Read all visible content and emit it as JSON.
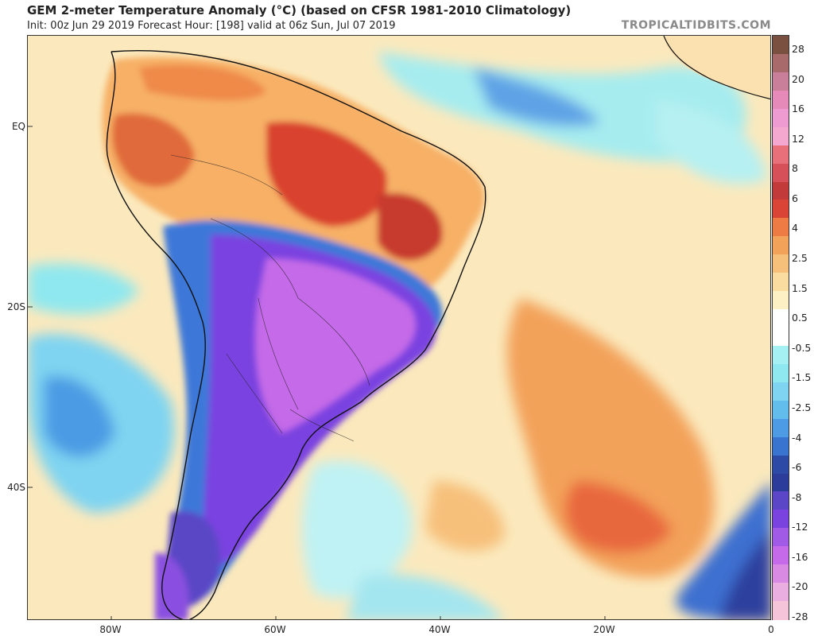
{
  "header": {
    "title": "GEM 2-meter Temperature Anomaly (°C) (based on CFSR 1981-2010 Climatology)",
    "subtitle": "Init: 00z Jun 29 2019   Forecast Hour: [198]   valid at 06z Sun, Jul 07 2019",
    "site": "TROPICALTIDBITS.COM"
  },
  "map": {
    "lat_labels": [
      "EQ",
      "20S",
      "40S"
    ],
    "lon_labels": [
      "80W",
      "60W",
      "40W",
      "20W",
      "0"
    ],
    "colors": {
      "background": "#fbeec6",
      "land_border": "#111111",
      "warm_strong": "#d03a2a",
      "warm": "#f08a4b",
      "warm_light": "#f7c07a",
      "near_zero": "#ffffff",
      "cool_light": "#8fe8ef",
      "cool": "#5fb2ea",
      "cold": "#3d4ec0",
      "very_cold": "#7a43e0",
      "extreme_cold": "#c56ae8"
    }
  },
  "colorbar": {
    "labels": [
      "28",
      "20",
      "16",
      "12",
      "8",
      "6",
      "4",
      "2.5",
      "1.5",
      "0.5",
      "-0.5",
      "-1.5",
      "-2.5",
      "-4",
      "-6",
      "-8",
      "-12",
      "-16",
      "-20",
      "-28"
    ],
    "colors": [
      "#7a5040",
      "#a86a6a",
      "#c97f9a",
      "#e68bb9",
      "#ee9bd2",
      "#f5a8cf",
      "#e8707b",
      "#d6505a",
      "#c23a3a",
      "#d94436",
      "#ee7a44",
      "#f3a25a",
      "#f7c07a",
      "#fbdca0",
      "#fdf0c4",
      "#ffffff",
      "#ffffff",
      "#a4f0f2",
      "#8fe8ef",
      "#7fd4f1",
      "#62bdec",
      "#4c9be4",
      "#3874d0",
      "#2d4aa6",
      "#2c3c9a",
      "#5a46c6",
      "#7a43e0",
      "#a05ae6",
      "#c56ae8",
      "#d98ae2",
      "#ebaee0",
      "#f6c4d8"
    ]
  }
}
